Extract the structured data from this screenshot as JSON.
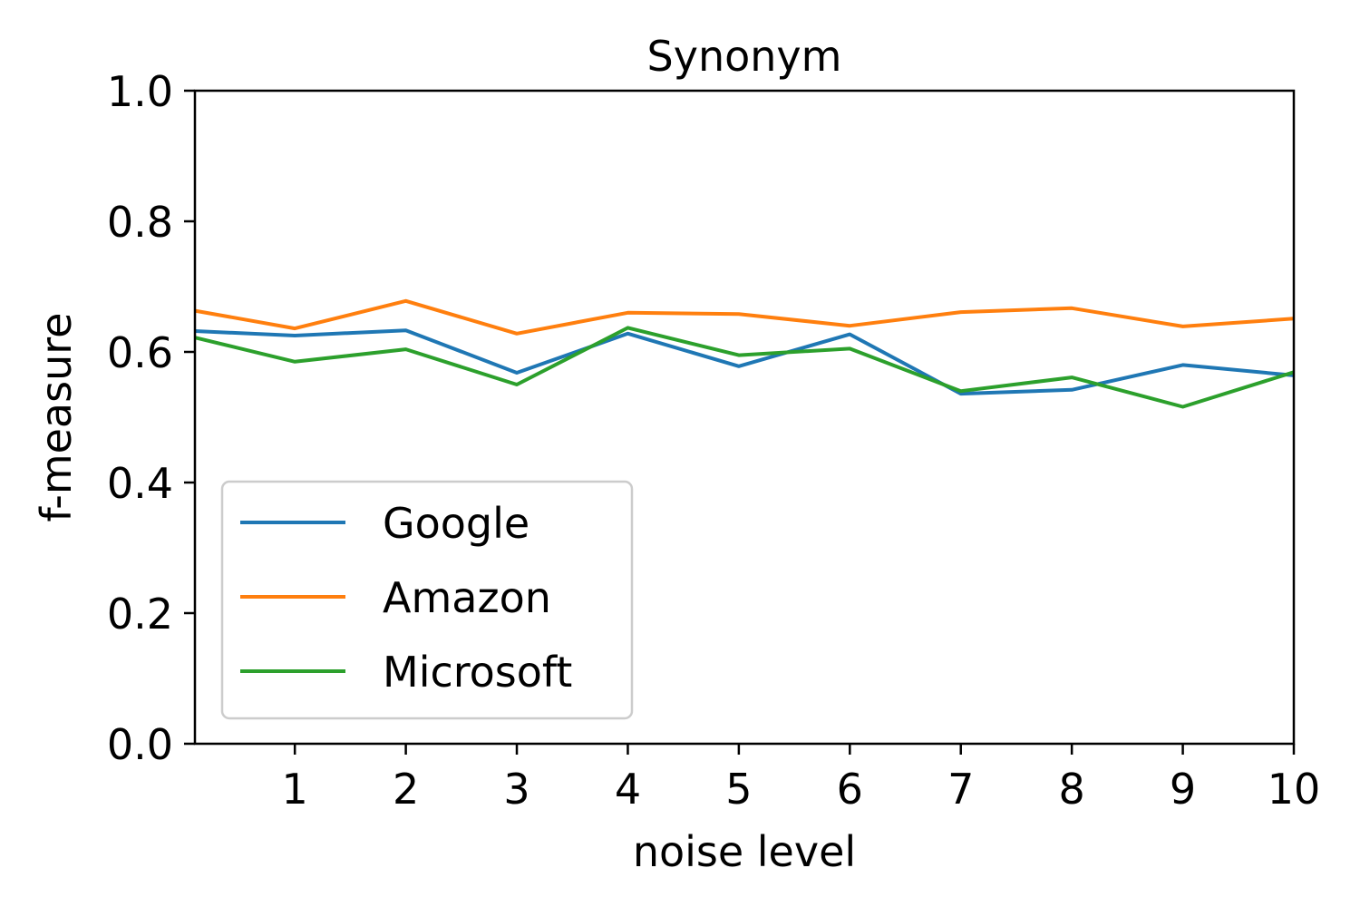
{
  "chart_data": {
    "type": "line",
    "title": "Synonym",
    "xlabel": "noise level",
    "ylabel": "f-measure",
    "x": [
      0.1,
      1,
      2,
      3,
      4,
      5,
      6,
      7,
      8,
      9,
      10
    ],
    "xlim": [
      0.1,
      10
    ],
    "ylim": [
      0,
      1
    ],
    "xticks": [
      1,
      2,
      3,
      4,
      5,
      6,
      7,
      8,
      9,
      10
    ],
    "yticks": [
      0.0,
      0.2,
      0.4,
      0.6,
      0.8,
      1.0
    ],
    "xtick_labels": [
      "1",
      "2",
      "3",
      "4",
      "5",
      "6",
      "7",
      "8",
      "9",
      "10"
    ],
    "ytick_labels": [
      "0.0",
      "0.2",
      "0.4",
      "0.6",
      "0.8",
      "1.0"
    ],
    "grid": false,
    "legend_position": "lower-left",
    "series": [
      {
        "name": "Google",
        "color": "#1f77b4",
        "values": [
          0.632,
          0.625,
          0.633,
          0.568,
          0.628,
          0.578,
          0.627,
          0.536,
          0.542,
          0.58,
          0.564
        ]
      },
      {
        "name": "Amazon",
        "color": "#ff7f0e",
        "values": [
          0.663,
          0.636,
          0.678,
          0.628,
          0.66,
          0.658,
          0.64,
          0.661,
          0.667,
          0.639,
          0.651
        ]
      },
      {
        "name": "Microsoft",
        "color": "#2ca02c",
        "values": [
          0.622,
          0.585,
          0.604,
          0.55,
          0.637,
          0.595,
          0.605,
          0.54,
          0.561,
          0.516,
          0.569
        ]
      }
    ]
  }
}
